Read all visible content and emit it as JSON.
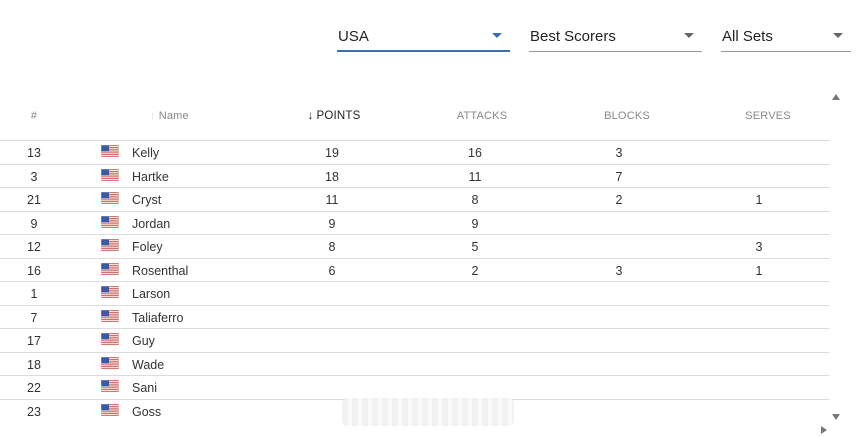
{
  "filters": {
    "team": "USA",
    "mode": "Best Scorers",
    "sets": "All Sets"
  },
  "table": {
    "headers": {
      "number": "#",
      "name": "Name",
      "points": "POINTS",
      "attacks": "ATTACKS",
      "blocks": "BLOCKS",
      "serves": "SERVES"
    },
    "rows": [
      {
        "number": "13",
        "name": "Kelly",
        "points": "19",
        "attacks": "16",
        "blocks": "3",
        "serves": ""
      },
      {
        "number": "3",
        "name": "Hartke",
        "points": "18",
        "attacks": "11",
        "blocks": "7",
        "serves": ""
      },
      {
        "number": "21",
        "name": "Cryst",
        "points": "11",
        "attacks": "8",
        "blocks": "2",
        "serves": "1"
      },
      {
        "number": "9",
        "name": "Jordan",
        "points": "9",
        "attacks": "9",
        "blocks": "",
        "serves": ""
      },
      {
        "number": "12",
        "name": "Foley",
        "points": "8",
        "attacks": "5",
        "blocks": "",
        "serves": "3"
      },
      {
        "number": "16",
        "name": "Rosenthal",
        "points": "6",
        "attacks": "2",
        "blocks": "3",
        "serves": "1"
      },
      {
        "number": "1",
        "name": "Larson",
        "points": "",
        "attacks": "",
        "blocks": "",
        "serves": ""
      },
      {
        "number": "7",
        "name": "Taliaferro",
        "points": "",
        "attacks": "",
        "blocks": "",
        "serves": ""
      },
      {
        "number": "17",
        "name": "Guy",
        "points": "",
        "attacks": "",
        "blocks": "",
        "serves": ""
      },
      {
        "number": "18",
        "name": "Wade",
        "points": "",
        "attacks": "",
        "blocks": "",
        "serves": ""
      },
      {
        "number": "22",
        "name": "Sani",
        "points": "",
        "attacks": "",
        "blocks": "",
        "serves": ""
      },
      {
        "number": "23",
        "name": "Goss",
        "points": "",
        "attacks": "",
        "blocks": "",
        "serves": ""
      }
    ]
  },
  "icons": {
    "flag": "usa-flag-icon",
    "sort_active": "arrow-down-icon",
    "sort_inactive": "arrow-up-icon",
    "dropdown": "chevron-down-icon"
  },
  "colors": {
    "accent": "#3a6fb0",
    "divider": "#dcdcdc"
  }
}
